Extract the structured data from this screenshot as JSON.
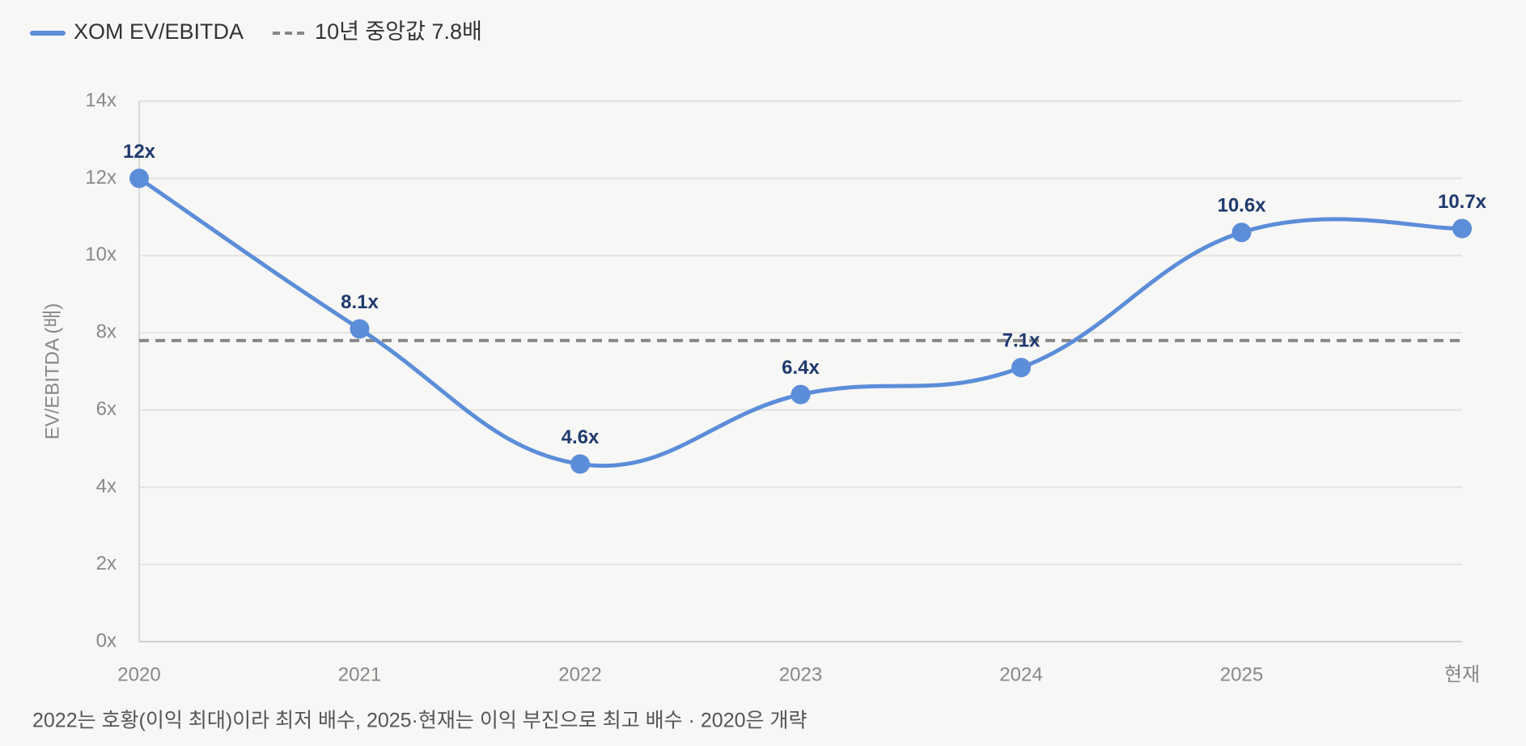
{
  "chart_data": {
    "type": "line",
    "categories": [
      "2020",
      "2021",
      "2022",
      "2023",
      "2024",
      "2025",
      "현재"
    ],
    "series": [
      {
        "name": "XOM EV/EBITDA",
        "color": "#5b8dd9",
        "values": [
          12,
          8.1,
          4.6,
          6.4,
          7.1,
          10.6,
          10.7
        ],
        "value_labels": [
          "12x",
          "8.1x",
          "4.6x",
          "6.4x",
          "7.1x",
          "10.6x",
          "10.7x"
        ]
      }
    ],
    "reference_lines": [
      {
        "name": "10년 중앙값 7.8배",
        "value": 7.8,
        "color": "#888888",
        "dashed": true
      }
    ],
    "y_label": "EV/EBITDA (배)",
    "note": "2022는 호황(이익 최대)이라 최저 배수, 2025·현재는 이익 부진으로 최고 배수 · 2020은 개략",
    "ylim": [
      0,
      14
    ],
    "yticks": [
      {
        "value": 0,
        "label": "0x"
      },
      {
        "value": 2,
        "label": "2x"
      },
      {
        "value": 4,
        "label": "4x"
      },
      {
        "value": 6,
        "label": "6x"
      },
      {
        "value": 8,
        "label": "8x"
      },
      {
        "value": 10,
        "label": "10x"
      },
      {
        "value": 12,
        "label": "12x"
      },
      {
        "value": 14,
        "label": "14x"
      }
    ],
    "grid": true,
    "legend": "top-left"
  }
}
